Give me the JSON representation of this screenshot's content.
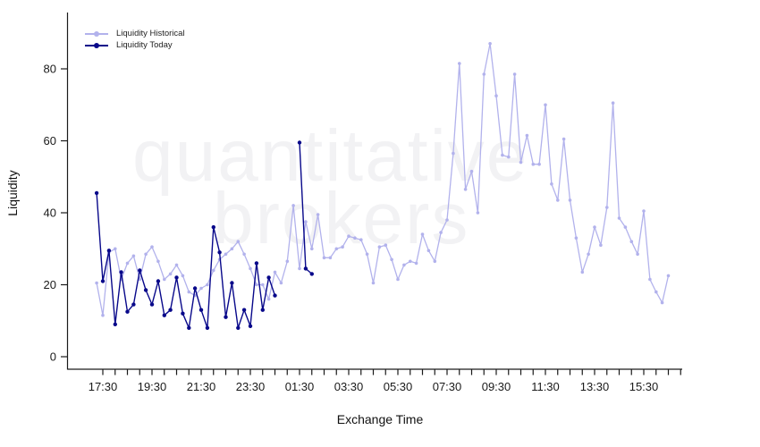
{
  "watermark": {
    "line1": "quantitative",
    "line2": "brokers"
  },
  "chart_data": {
    "type": "line",
    "title": "",
    "xlabel": "Exchange Time",
    "ylabel": "Liquidity",
    "grid": false,
    "legend_position": "top-left",
    "ylim": [
      0,
      92
    ],
    "y_ticks": [
      0,
      20,
      40,
      60,
      80
    ],
    "x_tick_labels": [
      "17:30",
      "19:30",
      "21:30",
      "23:30",
      "01:30",
      "03:30",
      "05:30",
      "07:30",
      "09:30",
      "11:30",
      "13:30",
      "15:30"
    ],
    "x_minor_tick_interval_minutes": 30,
    "series": [
      {
        "name": "Liquidity Historical",
        "color": "#b2b2ec",
        "points": [
          [
            "17:15",
            20.5
          ],
          [
            "17:30",
            11.5
          ],
          [
            "17:45",
            29
          ],
          [
            "18:00",
            30
          ],
          [
            "18:15",
            21.5
          ],
          [
            "18:30",
            26
          ],
          [
            "18:45",
            28
          ],
          [
            "19:00",
            21.5
          ],
          [
            "19:15",
            28.5
          ],
          [
            "19:30",
            30.5
          ],
          [
            "19:45",
            26.5
          ],
          [
            "20:00",
            21.5
          ],
          [
            "20:15",
            23
          ],
          [
            "20:30",
            25.5
          ],
          [
            "20:45",
            22.5
          ],
          [
            "21:00",
            18
          ],
          [
            "21:15",
            17
          ],
          [
            "21:30",
            19
          ],
          [
            "21:45",
            20
          ],
          [
            "22:00",
            24
          ],
          [
            "22:15",
            27
          ],
          [
            "22:30",
            28.5
          ],
          [
            "22:45",
            30
          ],
          [
            "23:00",
            32
          ],
          [
            "23:15",
            28.5
          ],
          [
            "23:30",
            24.5
          ],
          [
            "23:45",
            20
          ],
          [
            "00:00",
            20
          ],
          [
            "00:15",
            16
          ],
          [
            "00:30",
            23.5
          ],
          [
            "00:45",
            20.5
          ],
          [
            "01:00",
            26.5
          ],
          [
            "01:15",
            42
          ],
          [
            "01:30",
            24.5
          ],
          [
            "01:45",
            37.5
          ],
          [
            "02:00",
            30
          ],
          [
            "02:15",
            39.5
          ],
          [
            "02:30",
            27.5
          ],
          [
            "02:45",
            27.5
          ],
          [
            "03:00",
            30
          ],
          [
            "03:15",
            30.5
          ],
          [
            "03:30",
            33.5
          ],
          [
            "03:45",
            33
          ],
          [
            "04:00",
            32.5
          ],
          [
            "04:15",
            28.5
          ],
          [
            "04:30",
            20.5
          ],
          [
            "04:45",
            30.5
          ],
          [
            "05:00",
            31
          ],
          [
            "05:15",
            27
          ],
          [
            "05:30",
            21.5
          ],
          [
            "05:45",
            25.5
          ],
          [
            "06:00",
            26.5
          ],
          [
            "06:15",
            26
          ],
          [
            "06:30",
            34
          ],
          [
            "06:45",
            29.5
          ],
          [
            "07:00",
            26.5
          ],
          [
            "07:15",
            34.5
          ],
          [
            "07:30",
            38
          ],
          [
            "07:45",
            56.5
          ],
          [
            "08:00",
            81.5
          ],
          [
            "08:15",
            46.5
          ],
          [
            "08:30",
            51.5
          ],
          [
            "08:45",
            40
          ],
          [
            "09:00",
            78.5
          ],
          [
            "09:15",
            87
          ],
          [
            "09:30",
            72.5
          ],
          [
            "09:45",
            56
          ],
          [
            "10:00",
            55.5
          ],
          [
            "10:15",
            78.5
          ],
          [
            "10:30",
            54
          ],
          [
            "10:45",
            61.5
          ],
          [
            "11:00",
            53.5
          ],
          [
            "11:15",
            53.5
          ],
          [
            "11:30",
            70
          ],
          [
            "11:45",
            48
          ],
          [
            "12:00",
            43.5
          ],
          [
            "12:15",
            60.5
          ],
          [
            "12:30",
            43.5
          ],
          [
            "12:45",
            33
          ],
          [
            "13:00",
            23.5
          ],
          [
            "13:15",
            28.5
          ],
          [
            "13:30",
            36
          ],
          [
            "13:45",
            31
          ],
          [
            "14:00",
            41.5
          ],
          [
            "14:15",
            70.5
          ],
          [
            "14:30",
            38.5
          ],
          [
            "14:45",
            36
          ],
          [
            "15:00",
            32
          ],
          [
            "15:15",
            28.5
          ],
          [
            "15:30",
            40.5
          ],
          [
            "15:45",
            21.5
          ],
          [
            "16:00",
            18
          ],
          [
            "16:15",
            15
          ],
          [
            "16:30",
            22.5
          ]
        ]
      },
      {
        "name": "Liquidity Today",
        "color": "#08088a",
        "points": [
          [
            "17:15",
            45.5
          ],
          [
            "17:30",
            21
          ],
          [
            "17:45",
            29.5
          ],
          [
            "18:00",
            9
          ],
          [
            "18:15",
            23.5
          ],
          [
            "18:30",
            12.5
          ],
          [
            "18:45",
            14.5
          ],
          [
            "19:00",
            24
          ],
          [
            "19:15",
            18.5
          ],
          [
            "19:30",
            14.5
          ],
          [
            "19:45",
            21
          ],
          [
            "20:00",
            11.5
          ],
          [
            "20:15",
            13
          ],
          [
            "20:30",
            22
          ],
          [
            "20:45",
            12
          ],
          [
            "21:00",
            8
          ],
          [
            "21:15",
            19
          ],
          [
            "21:30",
            13
          ],
          [
            "21:45",
            8
          ],
          [
            "22:00",
            36
          ],
          [
            "22:15",
            29
          ],
          [
            "22:30",
            11
          ],
          [
            "22:45",
            20.5
          ],
          [
            "23:00",
            8
          ],
          [
            "23:15",
            13
          ],
          [
            "23:30",
            8.5
          ],
          [
            "23:45",
            26
          ],
          [
            "00:00",
            13
          ],
          [
            "00:15",
            22
          ],
          [
            "00:30",
            17
          ],
          [
            "00:45",
            null
          ],
          [
            "01:00",
            null
          ],
          [
            "01:15",
            null
          ],
          [
            "01:30",
            59.5
          ],
          [
            "01:45",
            24.5
          ],
          [
            "02:00",
            23
          ]
        ]
      }
    ]
  }
}
